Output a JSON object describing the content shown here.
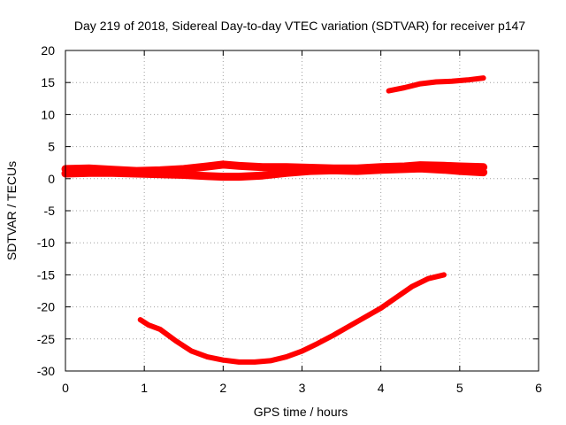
{
  "chart_data": {
    "type": "line",
    "title": "Day 219 of 2018, Sidereal Day-to-day VTEC variation (SDTVAR) for receiver p147",
    "xlabel": "GPS time / hours",
    "ylabel": "SDTVAR / TECUs",
    "xlim": [
      0,
      6
    ],
    "ylim": [
      -30,
      20
    ],
    "xticks": [
      0,
      1,
      2,
      3,
      4,
      5,
      6
    ],
    "yticks": [
      -30,
      -25,
      -20,
      -15,
      -10,
      -5,
      0,
      5,
      10,
      15,
      20
    ],
    "grid": true,
    "color": "#ff0000",
    "series": [
      {
        "name": "band upper",
        "x": [
          0.0,
          0.3,
          0.6,
          0.9,
          1.2,
          1.5,
          1.8,
          2.0,
          2.2,
          2.5,
          2.8,
          3.1,
          3.4,
          3.7,
          4.0,
          4.3,
          4.5,
          4.8,
          5.0,
          5.3
        ],
        "y": [
          1.5,
          1.6,
          1.4,
          1.2,
          1.3,
          1.5,
          1.9,
          2.2,
          2.0,
          1.8,
          1.8,
          1.7,
          1.6,
          1.6,
          1.8,
          1.9,
          2.1,
          2.0,
          1.9,
          1.8
        ]
      },
      {
        "name": "band lower",
        "x": [
          0.0,
          0.3,
          0.6,
          0.9,
          1.2,
          1.5,
          1.8,
          2.0,
          2.2,
          2.5,
          2.8,
          3.1,
          3.4,
          3.7,
          4.0,
          4.3,
          4.5,
          4.8,
          5.0,
          5.3
        ],
        "y": [
          0.8,
          0.9,
          0.9,
          0.8,
          0.7,
          0.6,
          0.4,
          0.3,
          0.3,
          0.5,
          0.9,
          1.2,
          1.3,
          1.2,
          1.4,
          1.5,
          1.6,
          1.4,
          1.2,
          1.0
        ]
      },
      {
        "name": "upper arc",
        "x": [
          4.1,
          4.3,
          4.5,
          4.7,
          4.9,
          5.1,
          5.3
        ],
        "y": [
          13.7,
          14.2,
          14.8,
          15.1,
          15.2,
          15.4,
          15.7
        ]
      },
      {
        "name": "lower arc",
        "x": [
          0.95,
          1.05,
          1.2,
          1.4,
          1.6,
          1.8,
          2.0,
          2.2,
          2.4,
          2.6,
          2.8,
          3.0,
          3.2,
          3.4,
          3.6,
          3.8,
          4.0,
          4.2,
          4.4,
          4.6,
          4.8
        ],
        "y": [
          -22.0,
          -22.8,
          -23.5,
          -25.3,
          -26.9,
          -27.8,
          -28.3,
          -28.6,
          -28.6,
          -28.4,
          -27.8,
          -26.9,
          -25.7,
          -24.4,
          -23.0,
          -21.6,
          -20.2,
          -18.5,
          -16.8,
          -15.6,
          -15.0
        ]
      }
    ]
  }
}
